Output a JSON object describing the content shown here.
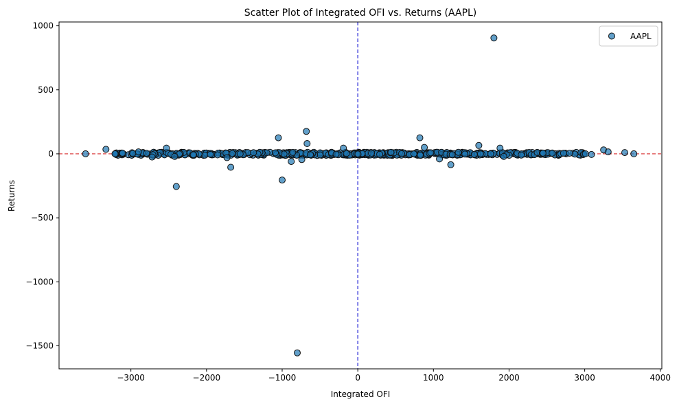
{
  "chart_data": {
    "type": "scatter",
    "title": "Scatter Plot of Integrated OFI vs. Returns (AAPL)",
    "xlabel": "Integrated OFI",
    "ylabel": "Returns",
    "xlim": [
      -3950,
      4020
    ],
    "ylim": [
      -1680,
      1030
    ],
    "xticks": [
      -3000,
      -2000,
      -1000,
      0,
      1000,
      2000,
      3000,
      4000
    ],
    "xtick_labels": [
      "−3000",
      "−2000",
      "−1000",
      "0",
      "1000",
      "2000",
      "3000",
      "4000"
    ],
    "yticks": [
      1000,
      500,
      0,
      -500,
      -1000,
      -1500
    ],
    "ytick_labels": [
      "1000",
      "500",
      "0",
      "−500",
      "−1000",
      "−1500"
    ],
    "grid": false,
    "legend_position": "top-right",
    "reference_lines": [
      {
        "orientation": "horizontal",
        "value": 0,
        "style": "dashed",
        "color": "#d62728"
      },
      {
        "orientation": "vertical",
        "value": 0,
        "style": "dashed",
        "color": "#1f1fd6"
      }
    ],
    "series": [
      {
        "name": "AAPL",
        "color": "#1f77b4",
        "outliers": [
          [
            1800,
            905
          ],
          [
            -800,
            -1555
          ],
          [
            -2400,
            -255
          ],
          [
            -1000,
            -205
          ],
          [
            -680,
            175
          ],
          [
            -1050,
            125
          ],
          [
            820,
            125
          ],
          [
            -670,
            80
          ],
          [
            -1680,
            -105
          ],
          [
            1230,
            -85
          ],
          [
            1600,
            65
          ],
          [
            -2530,
            45
          ],
          [
            -190,
            45
          ],
          [
            880,
            50
          ],
          [
            1880,
            45
          ],
          [
            -3330,
            35
          ],
          [
            3250,
            30
          ],
          [
            3310,
            15
          ],
          [
            -880,
            -60
          ],
          [
            -740,
            -45
          ],
          [
            -2720,
            -25
          ],
          [
            -2420,
            -20
          ],
          [
            -1730,
            -30
          ],
          [
            1080,
            -40
          ],
          [
            1930,
            -20
          ],
          [
            -2900,
            15
          ],
          [
            -3600,
            0
          ],
          [
            3650,
            0
          ],
          [
            3530,
            10
          ],
          [
            2720,
            5
          ],
          [
            2450,
            5
          ],
          [
            -3210,
            0
          ],
          [
            -3110,
            5
          ],
          [
            2570,
            5
          ],
          [
            2800,
            5
          ],
          [
            3010,
            0
          ],
          [
            3090,
            -5
          ]
        ],
        "dense_band": {
          "x_range": [
            -3200,
            3000
          ],
          "y_range": [
            -12,
            12
          ]
        }
      }
    ]
  }
}
